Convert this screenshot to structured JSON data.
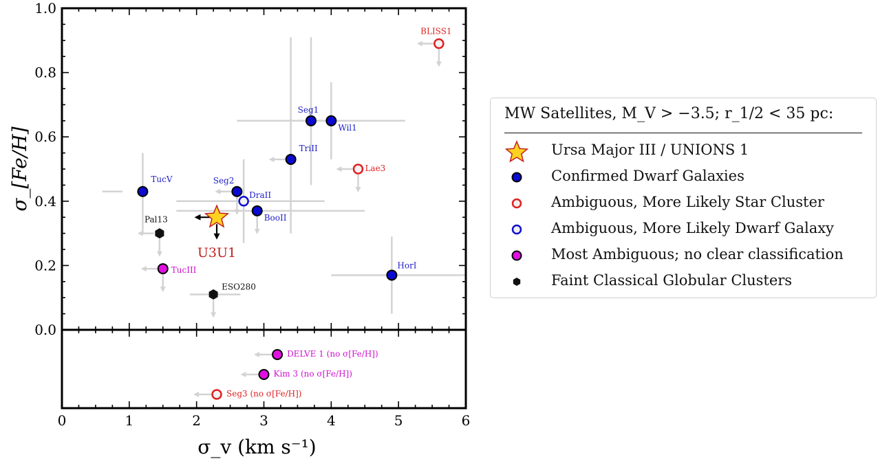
{
  "chart_data": {
    "type": "scatter",
    "xlabel": "σ_v (km s⁻¹)",
    "ylabel": "σ_[Fe/H]",
    "xlim": [
      0,
      6
    ],
    "ylim": [
      0,
      1.0
    ],
    "x_ticks": [
      "0",
      "1",
      "2",
      "3",
      "4",
      "5",
      "6"
    ],
    "y_ticks": [
      "0.0",
      "0.2",
      "0.4",
      "0.6",
      "0.8",
      "1.0"
    ],
    "star": {
      "x": 2.3,
      "y": 0.35,
      "label": "U3U1"
    },
    "points": [
      {
        "label": "TucV",
        "x": 1.2,
        "y": 0.43,
        "cls": "dwarf",
        "xerr": [
          0.6,
          0.9
        ],
        "yerr": [
          0.3,
          0.55
        ]
      },
      {
        "label": "Seg2",
        "x": 2.6,
        "y": 0.43,
        "cls": "dwarf",
        "upper_x": true,
        "upper_y": true
      },
      {
        "label": "DraII",
        "x": 2.7,
        "y": 0.4,
        "cls": "mld",
        "xerr": [
          1.7,
          3.9
        ],
        "yerr": [
          0.27,
          0.53
        ]
      },
      {
        "label": "BooII",
        "x": 2.9,
        "y": 0.37,
        "cls": "dwarf",
        "xerr": [
          1.7,
          4.5
        ],
        "upper_y": true
      },
      {
        "label": "Seg1",
        "x": 3.7,
        "y": 0.65,
        "cls": "dwarf",
        "xerr": [
          2.6,
          5.1
        ],
        "yerr": [
          0.45,
          0.91
        ]
      },
      {
        "label": "Wil1",
        "x": 4.0,
        "y": 0.65,
        "cls": "dwarf",
        "xerr": [
          3.6,
          4.5
        ],
        "yerr": [
          0.53,
          0.77
        ]
      },
      {
        "label": "TriII",
        "x": 3.4,
        "y": 0.53,
        "cls": "dwarf",
        "upper_x": true,
        "yerr": [
          0.3,
          0.91
        ]
      },
      {
        "label": "Lae3",
        "x": 4.4,
        "y": 0.5,
        "cls": "msc",
        "upper_x": true,
        "upper_y": true
      },
      {
        "label": "BLISS1",
        "x": 5.6,
        "y": 0.89,
        "cls": "msc",
        "upper_x": true,
        "upper_y": true
      },
      {
        "label": "HorI",
        "x": 4.9,
        "y": 0.17,
        "cls": "dwarf",
        "xerr": [
          4.0,
          6.0
        ],
        "yerr": [
          0.05,
          0.29
        ]
      },
      {
        "label": "Pal13",
        "x": 1.45,
        "y": 0.3,
        "cls": "gc",
        "upper_x": true,
        "upper_y": true
      },
      {
        "label": "TucIII",
        "x": 1.5,
        "y": 0.19,
        "cls": "amb",
        "upper_x": true,
        "upper_y": true
      },
      {
        "label": "ESO280",
        "x": 2.25,
        "y": 0.11,
        "cls": "gc",
        "xerr": [
          1.9,
          2.65
        ],
        "upper_y": true
      }
    ],
    "no_feh": [
      {
        "label": "DELVE 1 (no σ[Fe/H])",
        "x": 3.2,
        "cls": "amb"
      },
      {
        "label": "Kim 3 (no σ[Fe/H])",
        "x": 3.0,
        "cls": "amb"
      },
      {
        "label": "Seg3 (no σ[Fe/H])",
        "x": 2.3,
        "cls": "msc"
      }
    ]
  },
  "legend": {
    "title": "MW Satellites, M_V > −3.5; r_1/2 < 35 pc:",
    "items": [
      {
        "label": "Ursa Major III / UNIONS 1",
        "marker": "star"
      },
      {
        "label": "Confirmed Dwarf Galaxies",
        "marker": "dwarf"
      },
      {
        "label": "Ambiguous, More Likely Star Cluster",
        "marker": "msc"
      },
      {
        "label": "Ambiguous, More Likely Dwarf Galaxy",
        "marker": "mld"
      },
      {
        "label": "Most Ambiguous; no clear classification",
        "marker": "amb"
      },
      {
        "label": "Faint Classical Globular Clusters",
        "marker": "gc"
      }
    ]
  },
  "colors": {
    "dwarf_fill": "#0a0ad0",
    "dwarf_label": "#2020c8",
    "msc_edge": "#e02020",
    "msc_label": "#e02020",
    "mld_edge": "#1010d0",
    "amb_fill": "#e010e0",
    "amb_label": "#d010d0",
    "gc_fill": "#111111",
    "star_fill": "#ffd21f",
    "star_edge": "#c02020",
    "err": "#d3d3d3",
    "axis": "#000000"
  }
}
